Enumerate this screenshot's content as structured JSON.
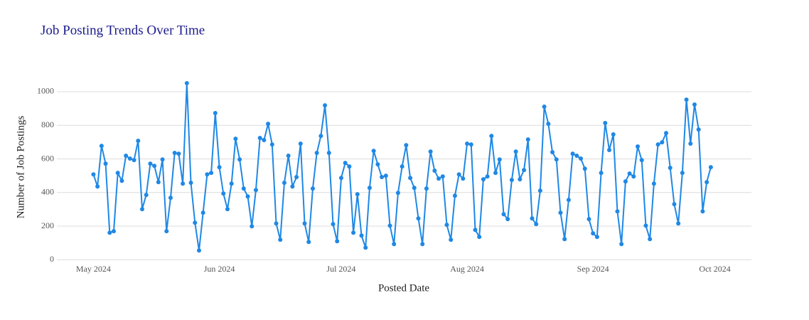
{
  "chart_data": {
    "type": "line",
    "title": "Job Posting Trends Over Time",
    "xlabel": "Posted Date",
    "ylabel": "Number of Job Postings",
    "color": "#1f88e5",
    "grid": true,
    "xlim": [
      "2024-04-22",
      "2024-10-10"
    ],
    "ylim": [
      -20,
      1110
    ],
    "yticks": [
      0,
      200,
      400,
      600,
      800,
      1000
    ],
    "xticks": [
      {
        "value": "2024-05-01",
        "label": "May 2024"
      },
      {
        "value": "2024-06-01",
        "label": "Jun 2024"
      },
      {
        "value": "2024-07-01",
        "label": "Jul 2024"
      },
      {
        "value": "2024-08-01",
        "label": "Aug 2024"
      },
      {
        "value": "2024-09-01",
        "label": "Sep 2024"
      },
      {
        "value": "2024-10-01",
        "label": "Oct 2024"
      }
    ],
    "x": [
      "2024-05-01",
      "2024-05-02",
      "2024-05-03",
      "2024-05-04",
      "2024-05-05",
      "2024-05-06",
      "2024-05-07",
      "2024-05-08",
      "2024-05-09",
      "2024-05-10",
      "2024-05-11",
      "2024-05-12",
      "2024-05-13",
      "2024-05-14",
      "2024-05-15",
      "2024-05-16",
      "2024-05-17",
      "2024-05-18",
      "2024-05-19",
      "2024-05-20",
      "2024-05-21",
      "2024-05-22",
      "2024-05-23",
      "2024-05-24",
      "2024-05-25",
      "2024-05-26",
      "2024-05-27",
      "2024-05-28",
      "2024-05-29",
      "2024-05-30",
      "2024-05-31",
      "2024-06-01",
      "2024-06-02",
      "2024-06-03",
      "2024-06-04",
      "2024-06-05",
      "2024-06-06",
      "2024-06-07",
      "2024-06-08",
      "2024-06-09",
      "2024-06-10",
      "2024-06-11",
      "2024-06-12",
      "2024-06-13",
      "2024-06-14",
      "2024-06-15",
      "2024-06-16",
      "2024-06-17",
      "2024-06-18",
      "2024-06-19",
      "2024-06-20",
      "2024-06-21",
      "2024-06-22",
      "2024-06-23",
      "2024-06-24",
      "2024-06-25",
      "2024-06-26",
      "2024-06-27",
      "2024-06-28",
      "2024-06-29",
      "2024-06-30",
      "2024-07-01",
      "2024-07-02",
      "2024-07-03",
      "2024-07-04",
      "2024-07-05",
      "2024-07-06",
      "2024-07-07",
      "2024-07-08",
      "2024-07-09",
      "2024-07-10",
      "2024-07-11",
      "2024-07-12",
      "2024-07-13",
      "2024-07-14",
      "2024-07-15",
      "2024-07-16",
      "2024-07-17",
      "2024-07-18",
      "2024-07-19",
      "2024-07-20",
      "2024-07-21",
      "2024-07-22",
      "2024-07-23",
      "2024-07-24",
      "2024-07-25",
      "2024-07-26",
      "2024-07-27",
      "2024-07-28",
      "2024-07-29",
      "2024-07-30",
      "2024-07-31",
      "2024-08-01",
      "2024-08-02",
      "2024-08-03",
      "2024-08-04",
      "2024-08-05",
      "2024-08-06",
      "2024-08-07",
      "2024-08-08",
      "2024-08-09",
      "2024-08-10",
      "2024-08-11",
      "2024-08-12",
      "2024-08-13",
      "2024-08-14",
      "2024-08-15",
      "2024-08-16",
      "2024-08-17",
      "2024-08-18",
      "2024-08-19",
      "2024-08-20",
      "2024-08-21",
      "2024-08-22",
      "2024-08-23",
      "2024-08-24",
      "2024-08-25",
      "2024-08-26",
      "2024-08-27",
      "2024-08-28",
      "2024-08-29",
      "2024-08-30",
      "2024-08-31",
      "2024-09-01",
      "2024-09-02",
      "2024-09-03",
      "2024-09-04",
      "2024-09-05",
      "2024-09-06",
      "2024-09-07",
      "2024-09-08",
      "2024-09-09",
      "2024-09-10",
      "2024-09-11",
      "2024-09-12",
      "2024-09-13",
      "2024-09-14",
      "2024-09-15",
      "2024-09-16",
      "2024-09-17",
      "2024-09-18",
      "2024-09-19",
      "2024-09-20",
      "2024-09-21",
      "2024-09-22",
      "2024-09-23",
      "2024-09-24",
      "2024-09-25",
      "2024-09-26",
      "2024-09-27",
      "2024-09-28",
      "2024-09-29",
      "2024-09-30"
    ],
    "values": [
      508,
      436,
      678,
      572,
      161,
      170,
      517,
      470,
      619,
      602,
      593,
      708,
      301,
      386,
      572,
      559,
      462,
      597,
      170,
      369,
      636,
      631,
      453,
      1051,
      458,
      220,
      55,
      280,
      508,
      517,
      873,
      551,
      394,
      301,
      453,
      720,
      597,
      424,
      377,
      199,
      415,
      725,
      712,
      809,
      686,
      216,
      119,
      458,
      619,
      436,
      492,
      691,
      216,
      106,
      424,
      636,
      737,
      919,
      636,
      212,
      110,
      487,
      576,
      555,
      161,
      390,
      144,
      72,
      428,
      648,
      568,
      492,
      500,
      203,
      93,
      398,
      555,
      682,
      487,
      428,
      246,
      93,
      424,
      644,
      530,
      483,
      496,
      208,
      119,
      381,
      508,
      483,
      691,
      686,
      178,
      136,
      479,
      496,
      737,
      517,
      597,
      271,
      242,
      475,
      644,
      479,
      534,
      716,
      246,
      212,
      411,
      911,
      809,
      640,
      597,
      280,
      123,
      356,
      631,
      619,
      602,
      542,
      242,
      157,
      136,
      517,
      814,
      653,
      746,
      288,
      93,
      466,
      513,
      496,
      674,
      593,
      203,
      123,
      453,
      686,
      699,
      754,
      547,
      331,
      216,
      517,
      953,
      691,
      924,
      775,
      288,
      462,
      551
    ]
  }
}
